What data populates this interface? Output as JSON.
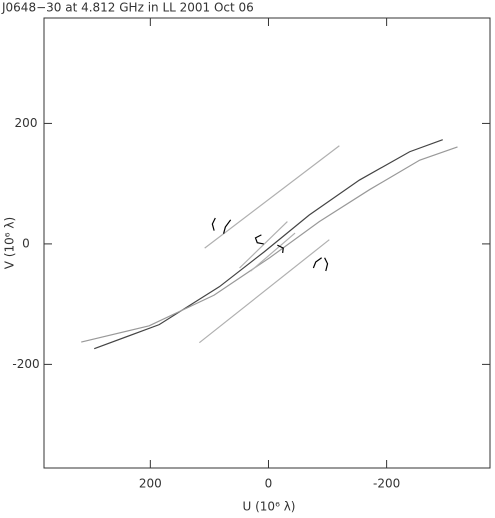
{
  "chart_data": {
    "type": "line",
    "title": "J0648−30 at 4.812 GHz in LL  2001 Oct 06",
    "x_label": "U (10⁶ λ)",
    "y_label": "V (10⁶ λ)",
    "xlim": [
      380,
      -375
    ],
    "ylim": [
      -372,
      375
    ],
    "xticks": [
      200,
      0,
      -200
    ],
    "yticks": [
      -200,
      0,
      200
    ],
    "series": [
      {
        "color": "#444444",
        "x": [
          295,
          185,
          83,
          7,
          -69,
          -154,
          -239,
          -295
        ],
        "values": [
          -174,
          -134,
          -71,
          -13,
          48,
          106,
          153,
          173
        ]
      },
      {
        "color": "#999999",
        "x": [
          317,
          202,
          92,
          -2,
          -86,
          -171,
          -256,
          -320
        ],
        "values": [
          -163,
          -136,
          -85,
          -23,
          37,
          90,
          139,
          161
        ]
      },
      {
        "color": "#b0b0b0",
        "x": [
          108,
          -120
        ],
        "values": [
          -7,
          163
        ]
      },
      {
        "color": "#b0b0b0",
        "x": [
          117,
          -103
        ],
        "values": [
          -164,
          7
        ]
      },
      {
        "color": "#b0b0b0",
        "x": [
          49,
          -32
        ],
        "values": [
          -40,
          37
        ]
      },
      {
        "color": "#b0b0b0",
        "x": [
          30,
          -45
        ],
        "values": [
          -45,
          18
        ]
      },
      {
        "color": "#000000",
        "x": [
          90,
          95,
          92
        ],
        "values": [
          43,
          33,
          22
        ]
      },
      {
        "color": "#000000",
        "x": [
          64,
          73,
          76
        ],
        "values": [
          40,
          28,
          17
        ]
      },
      {
        "color": "#000000",
        "x": [
          12,
          22,
          19,
          8
        ],
        "values": [
          15,
          10,
          2,
          0
        ]
      },
      {
        "color": "#000000",
        "x": [
          -15,
          -25,
          -24
        ],
        "values": [
          -2,
          -7,
          -15
        ]
      },
      {
        "color": "#000000",
        "x": [
          -90,
          -80,
          -76
        ],
        "values": [
          -23,
          -30,
          -40
        ]
      },
      {
        "color": "#000000",
        "x": [
          -95,
          -100,
          -97
        ],
        "values": [
          -23,
          -33,
          -45
        ]
      }
    ]
  }
}
